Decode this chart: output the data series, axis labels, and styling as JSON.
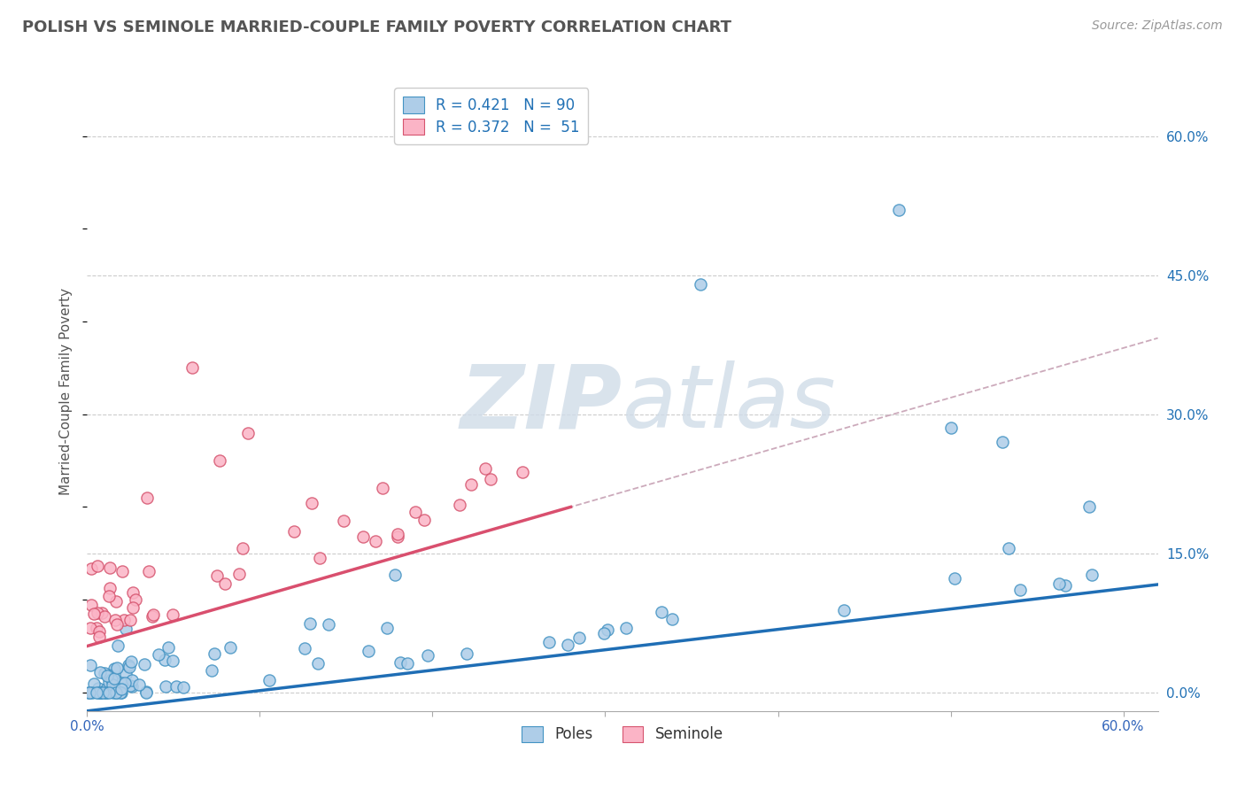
{
  "title": "POLISH VS SEMINOLE MARRIED-COUPLE FAMILY POVERTY CORRELATION CHART",
  "source": "Source: ZipAtlas.com",
  "ylabel": "Married-Couple Family Poverty",
  "xlim": [
    0.0,
    0.62
  ],
  "ylim": [
    -0.02,
    0.67
  ],
  "xticks": [
    0.0,
    0.1,
    0.2,
    0.3,
    0.4,
    0.5,
    0.6
  ],
  "xticklabels": [
    "0.0%",
    "",
    "",
    "",
    "",
    "",
    "60.0%"
  ],
  "yticks_right": [
    0.0,
    0.15,
    0.3,
    0.45,
    0.6
  ],
  "ytick_right_labels": [
    "0.0%",
    "15.0%",
    "30.0%",
    "45.0%",
    "60.0%"
  ],
  "poles_color": "#aecde8",
  "poles_edge": "#4393c3",
  "seminole_color": "#fbb4c6",
  "seminole_edge": "#d6546e",
  "trend_poles_color": "#1f6eb5",
  "trend_seminole_color": "#d94f6e",
  "trend_dashed_color": "#ccaabb",
  "watermark_color": "#d0dce8",
  "background_color": "#ffffff",
  "grid_color": "#cccccc",
  "title_color": "#555555",
  "legend_blue_color": "#2171b5",
  "poles_label": "Poles",
  "seminole_label": "Seminole"
}
